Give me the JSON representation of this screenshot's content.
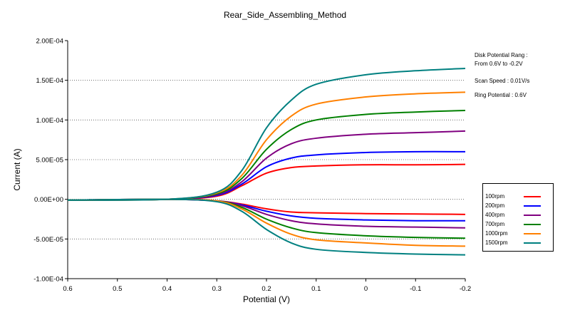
{
  "chart_data": {
    "type": "line",
    "title": "Rear_Side_Assembling_Method",
    "xlabel": "Potential (V)",
    "ylabel": "Current (A)",
    "xlim": [
      0.6,
      -0.2
    ],
    "ylim": [
      -0.0001,
      0.0002
    ],
    "x_ticks": [
      "0.6",
      "0.5",
      "0.4",
      "0.3",
      "0.2",
      "0.1",
      "0",
      "-0.1",
      "-0.2"
    ],
    "y_ticks": [
      "2.00E-04",
      "1.50E-04",
      "1.00E-04",
      "5.00E-05",
      "0.00E+00",
      "-5.00E-05",
      "-1.00E-04"
    ],
    "grid": "horizontal dotted",
    "annotations": [
      "Disk Potential Rang :",
      "From 0.6V to -0.2V",
      "Scan Speed : 0.01V/s",
      "Ring Potential : 0.6V"
    ],
    "series": [
      {
        "name": "100rpm",
        "color": "#ff0000",
        "x": [
          0.6,
          0.4,
          0.3,
          0.25,
          0.2,
          0.15,
          0.1,
          0.0,
          -0.1,
          -0.2
        ],
        "disk": [
          -1e-06,
          0.0,
          4e-06,
          1.7e-05,
          3.3e-05,
          4e-05,
          4.2e-05,
          4.35e-05,
          4.35e-05,
          4.4e-05
        ],
        "ring": [
          -1e-06,
          0.0,
          -2e-06,
          -6e-06,
          -1.2e-05,
          -1.6e-05,
          -1.7e-05,
          -1.8e-05,
          -1.85e-05,
          -1.9e-05
        ]
      },
      {
        "name": "200rpm",
        "color": "#0000ff",
        "x": [
          0.6,
          0.4,
          0.3,
          0.25,
          0.2,
          0.15,
          0.1,
          0.0,
          -0.1,
          -0.2
        ],
        "disk": [
          -1e-06,
          0.0,
          5e-06,
          1.9e-05,
          4.1e-05,
          5.2e-05,
          5.6e-05,
          5.9e-05,
          6e-05,
          6e-05
        ],
        "ring": [
          -1e-06,
          0.0,
          -2e-06,
          -7e-06,
          -1.5e-05,
          -2.1e-05,
          -2.4e-05,
          -2.6e-05,
          -2.7e-05,
          -2.7e-05
        ]
      },
      {
        "name": "400rpm",
        "color": "#800080",
        "x": [
          0.6,
          0.4,
          0.3,
          0.25,
          0.2,
          0.15,
          0.1,
          0.0,
          -0.1,
          -0.2
        ],
        "disk": [
          -1e-06,
          0.0,
          6e-06,
          2.2e-05,
          5.2e-05,
          7e-05,
          7.7e-05,
          8.2e-05,
          8.4e-05,
          8.6e-05
        ],
        "ring": [
          -1e-06,
          0.0,
          -2e-06,
          -8e-06,
          -1.9e-05,
          -2.7e-05,
          -3.1e-05,
          -3.4e-05,
          -3.5e-05,
          -3.6e-05
        ]
      },
      {
        "name": "700rpm",
        "color": "#008000",
        "x": [
          0.6,
          0.4,
          0.3,
          0.25,
          0.2,
          0.15,
          0.1,
          0.0,
          -0.1,
          -0.2
        ],
        "disk": [
          -1e-06,
          0.0,
          7e-06,
          2.6e-05,
          6.3e-05,
          8.8e-05,
          0.0001,
          0.000107,
          0.00011,
          0.000112
        ],
        "ring": [
          -1e-06,
          0.0,
          -2e-06,
          -1e-05,
          -2.5e-05,
          -3.6e-05,
          -4.2e-05,
          -4.6e-05,
          -4.8e-05,
          -4.9e-05
        ]
      },
      {
        "name": "1000rpm",
        "color": "#ff8000",
        "x": [
          0.6,
          0.4,
          0.3,
          0.25,
          0.2,
          0.15,
          0.1,
          0.0,
          -0.1,
          -0.2
        ],
        "disk": [
          -1e-06,
          0.0,
          8e-06,
          3e-05,
          7.5e-05,
          0.000105,
          0.00012,
          0.000129,
          0.000133,
          0.000135
        ],
        "ring": [
          -1e-06,
          0.0,
          -2e-06,
          -1.2e-05,
          -3e-05,
          -4.4e-05,
          -5.1e-05,
          -5.5e-05,
          -5.8e-05,
          -5.9e-05
        ]
      },
      {
        "name": "1500rpm",
        "color": "#008080",
        "x": [
          0.6,
          0.4,
          0.3,
          0.25,
          0.2,
          0.15,
          0.1,
          0.0,
          -0.1,
          -0.2
        ],
        "disk": [
          -1e-06,
          0.0,
          9e-06,
          3.6e-05,
          9e-05,
          0.000125,
          0.000145,
          0.000157,
          0.000162,
          0.000165
        ],
        "ring": [
          -1e-06,
          0.0,
          -3e-06,
          -1.5e-05,
          -3.8e-05,
          -5.5e-05,
          -6.3e-05,
          -6.7e-05,
          -6.9e-05,
          -7e-05
        ]
      }
    ]
  }
}
